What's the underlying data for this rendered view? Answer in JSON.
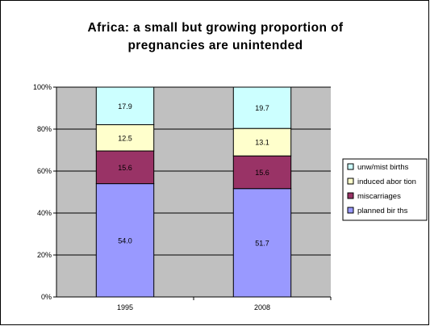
{
  "chart_data": {
    "type": "bar",
    "stacked": true,
    "percent_stacked": true,
    "title": "Africa: a small but growing proportion of pregnancies are unintended",
    "title_lines": [
      "Africa: a small but growing proportion of",
      "pregnancies are unintended"
    ],
    "categories": [
      "1995",
      "2008"
    ],
    "series": [
      {
        "name": "planned births",
        "values": [
          54.0,
          51.7
        ],
        "labels": [
          "54.0",
          "51.7"
        ],
        "color": "#9999ff"
      },
      {
        "name": "miscarriages",
        "values": [
          15.6,
          15.6
        ],
        "labels": [
          "15.6",
          "15.6"
        ],
        "color": "#993366"
      },
      {
        "name": "induced abortion",
        "values": [
          12.5,
          13.1
        ],
        "labels": [
          "12.5",
          "13.1"
        ],
        "color": "#ffffcc"
      },
      {
        "name": "unw/mist births",
        "values": [
          17.9,
          19.7
        ],
        "labels": [
          "17.9",
          "19.7"
        ],
        "color": "#ccffff"
      }
    ],
    "legend_items": [
      "unw/mist births",
      "induced abor tion",
      "miscarriages",
      "planned bir ths"
    ],
    "y_ticks": [
      "0%",
      "20%",
      "40%",
      "60%",
      "80%",
      "100%"
    ],
    "ylim": [
      0,
      100
    ],
    "grid": true,
    "plot_background": "#c0c0c0",
    "legend_position": "right"
  }
}
